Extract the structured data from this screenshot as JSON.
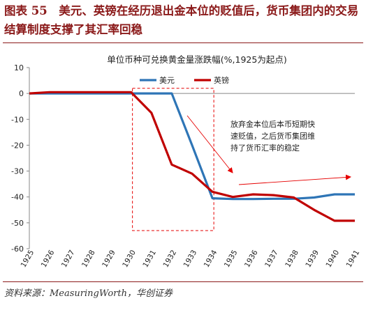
{
  "figure_title": "图表 55　美元、英镑在经历退出金本位的贬值后，货币集团内的交易结算制度支撑了其汇率回稳",
  "source": "资料来源：MeasuringWorth，华创证券",
  "chart_data": {
    "type": "line",
    "title": "单位币种可兑换黄金量涨跌幅(%,1925为起点)",
    "xlabel": "",
    "ylabel": "",
    "x": [
      "1925",
      "1926",
      "1927",
      "1928",
      "1929",
      "1930",
      "1931",
      "1932",
      "1933",
      "1934",
      "1935",
      "1936",
      "1937",
      "1938",
      "1939",
      "1940",
      "1941"
    ],
    "ylim": [
      -60,
      10
    ],
    "yticks": [
      "10",
      "0",
      "-10",
      "-20",
      "-30",
      "-40",
      "-50",
      "-60"
    ],
    "legend_position": "top-center",
    "grid": false,
    "series": [
      {
        "name": "美元",
        "color": "#2e75b6",
        "values": [
          0,
          0,
          0,
          0,
          0,
          0,
          0,
          0,
          -20,
          -40.5,
          -40.8,
          -40.8,
          -40.7,
          -40.7,
          -40.2,
          -39,
          -39
        ]
      },
      {
        "name": "英镑",
        "color": "#c00000",
        "values": [
          0,
          0.5,
          0.5,
          0.5,
          0.5,
          0.5,
          -7.5,
          -27.5,
          -31,
          -38,
          -40,
          -39,
          -39.3,
          -40.2,
          -45,
          -49.2,
          -49.2
        ]
      }
    ],
    "annotation": {
      "text_lines": [
        "放弃金本位后本币短期快",
        "速贬值，之后货币集团维",
        "持了货币汇率的稳定"
      ]
    },
    "highlight_range": {
      "x_from": "1930",
      "x_to": "1934",
      "y_from": 2,
      "y_to": -53
    }
  }
}
